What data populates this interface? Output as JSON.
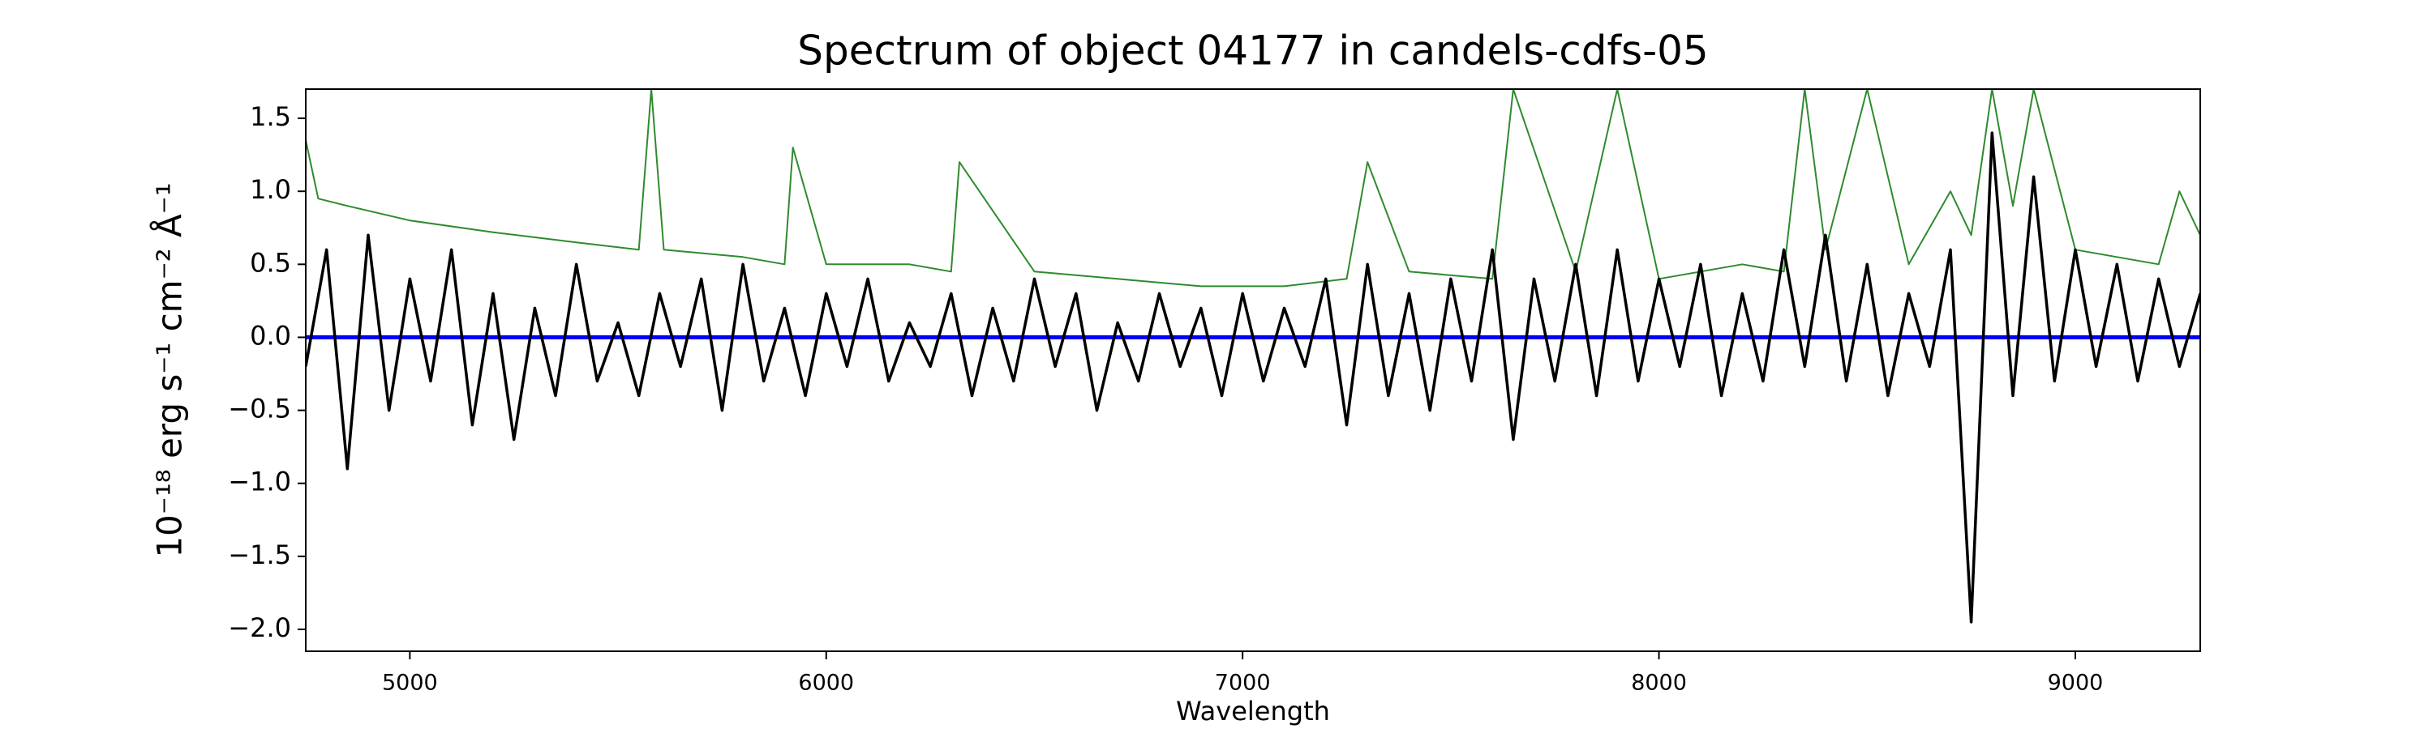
{
  "chart_data": {
    "type": "line",
    "title": "Spectrum of object 04177 in candels-cdfs-05",
    "xlabel": "Wavelength",
    "ylabel": "10⁻¹⁸ erg s⁻¹ cm⁻² Å⁻¹",
    "xlim": [
      4750,
      9300
    ],
    "ylim": [
      -2.15,
      1.7
    ],
    "xticks": [
      5000,
      6000,
      7000,
      8000,
      9000
    ],
    "yticks": [
      {
        "value": -2.0,
        "label": "−2.0"
      },
      {
        "value": -1.5,
        "label": "−1.5"
      },
      {
        "value": -1.0,
        "label": "−1.0"
      },
      {
        "value": -0.5,
        "label": "−0.5"
      },
      {
        "value": 0.0,
        "label": "0.0"
      },
      {
        "value": 0.5,
        "label": "0.5"
      },
      {
        "value": 1.0,
        "label": "1.0"
      },
      {
        "value": 1.5,
        "label": "1.5"
      }
    ],
    "series": [
      {
        "color": "#2e8b2e",
        "width": 2,
        "x": [
          4750,
          4780,
          4850,
          5000,
          5200,
          5400,
          5550,
          5580,
          5610,
          5800,
          5900,
          5920,
          6000,
          6200,
          6300,
          6320,
          6500,
          6700,
          6900,
          7000,
          7100,
          7250,
          7300,
          7400,
          7600,
          7650,
          7800,
          7900,
          8000,
          8200,
          8300,
          8350,
          8400,
          8500,
          8600,
          8700,
          8750,
          8800,
          8850,
          8900,
          9000,
          9100,
          9200,
          9250,
          9300
        ],
        "values": [
          1.35,
          0.95,
          0.9,
          0.8,
          0.72,
          0.65,
          0.6,
          1.7,
          0.6,
          0.55,
          0.5,
          1.3,
          0.5,
          0.5,
          0.45,
          1.2,
          0.45,
          0.4,
          0.35,
          0.35,
          0.35,
          0.4,
          1.2,
          0.45,
          0.4,
          1.7,
          0.45,
          1.7,
          0.4,
          0.5,
          0.45,
          1.7,
          0.6,
          1.7,
          0.5,
          1.0,
          0.7,
          1.7,
          0.9,
          1.7,
          0.6,
          0.55,
          0.5,
          1.0,
          0.7
        ]
      },
      {
        "color": "#0000ff",
        "width": 5,
        "x": [
          4750,
          9300
        ],
        "values": [
          0,
          0
        ]
      },
      {
        "color": "#000000",
        "width": 3.5,
        "x": [
          4750,
          4800,
          4850,
          4900,
          4950,
          5000,
          5050,
          5100,
          5150,
          5200,
          5250,
          5300,
          5350,
          5400,
          5450,
          5500,
          5550,
          5600,
          5650,
          5700,
          5750,
          5800,
          5850,
          5900,
          5950,
          6000,
          6050,
          6100,
          6150,
          6200,
          6250,
          6300,
          6350,
          6400,
          6450,
          6500,
          6550,
          6600,
          6650,
          6700,
          6750,
          6800,
          6850,
          6900,
          6950,
          7000,
          7050,
          7100,
          7150,
          7200,
          7250,
          7300,
          7350,
          7400,
          7450,
          7500,
          7550,
          7600,
          7650,
          7700,
          7750,
          7800,
          7850,
          7900,
          7950,
          8000,
          8050,
          8100,
          8150,
          8200,
          8250,
          8300,
          8350,
          8400,
          8450,
          8500,
          8550,
          8600,
          8650,
          8700,
          8750,
          8800,
          8850,
          8900,
          8950,
          9000,
          9050,
          9100,
          9150,
          9200,
          9250,
          9300
        ],
        "values": [
          -0.2,
          0.6,
          -0.9,
          0.7,
          -0.5,
          0.4,
          -0.3,
          0.6,
          -0.6,
          0.3,
          -0.7,
          0.2,
          -0.4,
          0.5,
          -0.3,
          0.1,
          -0.4,
          0.3,
          -0.2,
          0.4,
          -0.5,
          0.5,
          -0.3,
          0.2,
          -0.4,
          0.3,
          -0.2,
          0.4,
          -0.3,
          0.1,
          -0.2,
          0.3,
          -0.4,
          0.2,
          -0.3,
          0.4,
          -0.2,
          0.3,
          -0.5,
          0.1,
          -0.3,
          0.3,
          -0.2,
          0.2,
          -0.4,
          0.3,
          -0.3,
          0.2,
          -0.2,
          0.4,
          -0.6,
          0.5,
          -0.4,
          0.3,
          -0.5,
          0.4,
          -0.3,
          0.6,
          -0.7,
          0.4,
          -0.3,
          0.5,
          -0.4,
          0.6,
          -0.3,
          0.4,
          -0.2,
          0.5,
          -0.4,
          0.3,
          -0.3,
          0.6,
          -0.2,
          0.7,
          -0.3,
          0.5,
          -0.4,
          0.3,
          -0.2,
          0.6,
          -1.95,
          1.4,
          -0.4,
          1.1,
          -0.3,
          0.6,
          -0.2,
          0.5,
          -0.3,
          0.4,
          -0.2,
          0.3
        ]
      }
    ]
  }
}
